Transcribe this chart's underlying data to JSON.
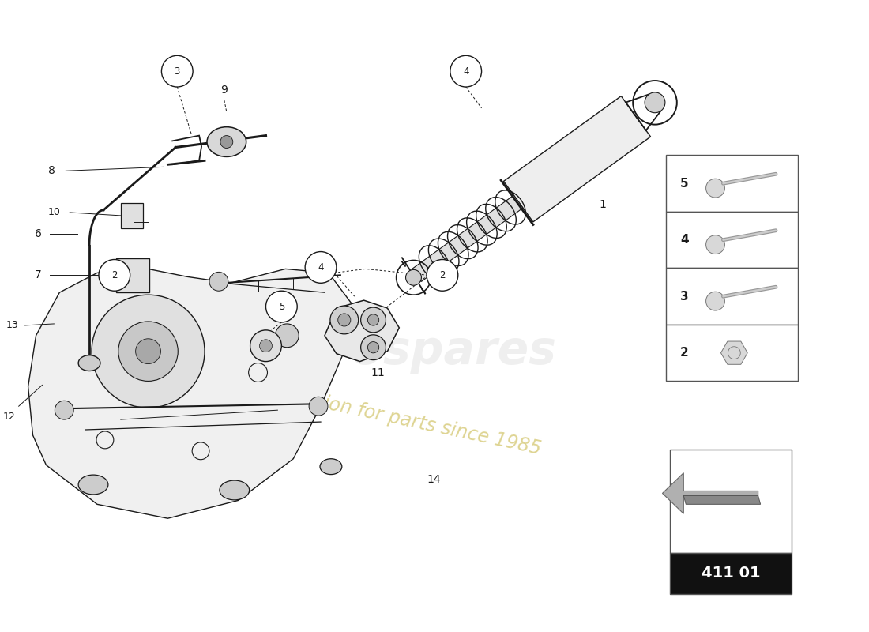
{
  "background_color": "#ffffff",
  "line_color": "#1a1a1a",
  "part_number": "411 01",
  "watermark_color": "#c8b84a",
  "figsize": [
    11.0,
    8.0
  ],
  "dpi": 100
}
